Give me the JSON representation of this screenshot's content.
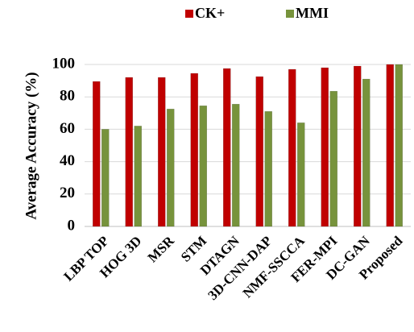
{
  "chart_data": {
    "type": "bar",
    "ylabel": "Average Accuracy (%)",
    "categories": [
      "LBP TOP",
      "HOG 3D",
      "MSR",
      "STM",
      "DTAGN",
      "3D-CNN-DAP",
      "NMF-SSCCA",
      "FER-MPI",
      "DC-GAN",
      "Proposed"
    ],
    "series": [
      {
        "name": "CK+",
        "color": "#c00000",
        "values": [
          89.5,
          92,
          92,
          94.5,
          97.5,
          92.5,
          97,
          98,
          99,
          100
        ]
      },
      {
        "name": "MMI",
        "color": "#77933c",
        "values": [
          60,
          62,
          72.5,
          74.5,
          75.5,
          71,
          64,
          83.5,
          91,
          100
        ]
      }
    ],
    "ylim": [
      0,
      100
    ],
    "yticks": [
      0,
      20,
      40,
      60,
      80,
      100
    ],
    "grid": true,
    "legend": "top"
  }
}
